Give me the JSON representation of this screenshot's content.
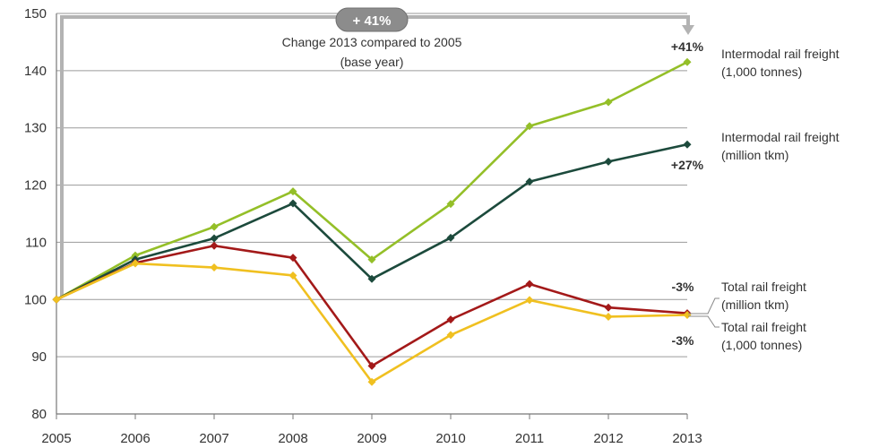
{
  "chart_data": {
    "type": "line",
    "x": [
      "2005",
      "2006",
      "2007",
      "2008",
      "2009",
      "2010",
      "2011",
      "2012",
      "2013"
    ],
    "ylim": [
      80,
      150
    ],
    "yticks": [
      80,
      90,
      100,
      110,
      120,
      130,
      140,
      150
    ],
    "grid": "horizontal",
    "series": [
      {
        "key": "intermodal_tonnes",
        "name_lines": [
          "Intermodal rail freight",
          "(1,000 tonnes)"
        ],
        "color": "#94bf28",
        "values": [
          100,
          107.7,
          112.7,
          118.9,
          107.0,
          116.7,
          130.3,
          134.5,
          141.5
        ],
        "end_label": "+41%"
      },
      {
        "key": "intermodal_tkm",
        "name_lines": [
          "Intermodal rail freight",
          "(million tkm)"
        ],
        "color": "#1c4a3c",
        "values": [
          100,
          107.0,
          110.7,
          116.8,
          103.6,
          110.8,
          120.6,
          124.1,
          127.1
        ],
        "end_label": "+27%"
      },
      {
        "key": "total_tkm",
        "name_lines": [
          "Total rail freight",
          "(million tkm)"
        ],
        "color": "#a31919",
        "values": [
          100,
          106.4,
          109.4,
          107.3,
          88.4,
          96.5,
          102.7,
          98.6,
          97.6
        ],
        "end_label": "-3%"
      },
      {
        "key": "total_tonnes",
        "name_lines": [
          "Total rail freight",
          "(1,000 tonnes)"
        ],
        "color": "#f0c020",
        "values": [
          100,
          106.3,
          105.6,
          104.2,
          85.6,
          93.8,
          99.9,
          97.0,
          97.3
        ],
        "end_label": "-3%"
      }
    ],
    "annotation": {
      "badge": "+ 41%",
      "text_lines": [
        "Change 2013 compared to 2005",
        "(base year)"
      ]
    }
  }
}
